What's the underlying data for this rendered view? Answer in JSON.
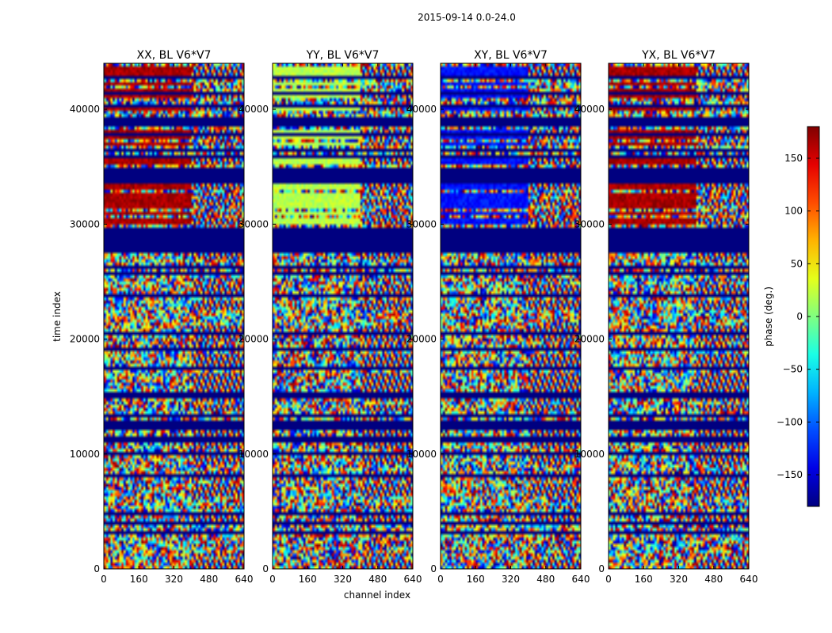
{
  "figure": {
    "suptitle": "2015-09-14 0.0-24.0",
    "xlabel": "channel index",
    "ylabel": "time index",
    "colorbar_label": "phase (deg.)",
    "colormap": "jet"
  },
  "chart_data": {
    "type": "heatmap",
    "panels": [
      {
        "title": "XX, BL V6*V7",
        "highlight": "red"
      },
      {
        "title": "YY, BL V6*V7",
        "highlight": "yellowgreen"
      },
      {
        "title": "XY, BL V6*V7",
        "highlight": "blue"
      },
      {
        "title": "YX, BL V6*V7",
        "highlight": "red"
      }
    ],
    "x_range": [
      0,
      640
    ],
    "x_ticks": [
      0,
      160,
      320,
      480,
      640
    ],
    "y_range": [
      0,
      44000
    ],
    "y_ticks": [
      0,
      10000,
      20000,
      30000,
      40000
    ],
    "value_range": [
      -180,
      180
    ],
    "colorbar_ticks": [
      150,
      100,
      50,
      0,
      -50,
      -100,
      -150
    ],
    "colorbar_tick_labels": [
      "150",
      "100",
      "50",
      "0",
      "−50",
      "−100",
      "−150"
    ],
    "masked_time_blocks": [
      [
        28000,
        29800
      ],
      [
        33500,
        35000
      ]
    ],
    "structured_channel_start": 400
  }
}
